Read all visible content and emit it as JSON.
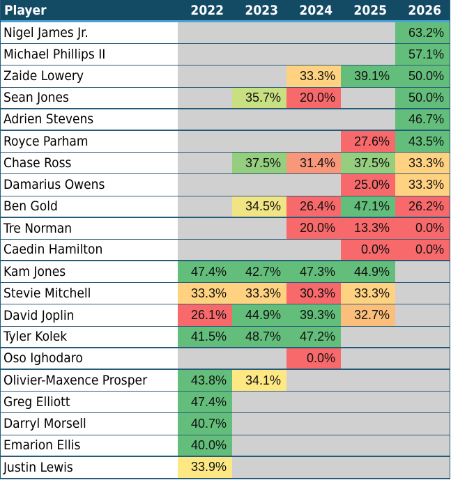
{
  "header": {
    "player": "Player",
    "years": [
      "2022",
      "2023",
      "2024",
      "2025",
      "2026"
    ]
  },
  "colors": {
    "empty": "#d0d0d0",
    "header_bg": "#134a64"
  },
  "rows": [
    {
      "name": "Nigel James Jr.",
      "cells": [
        null,
        null,
        null,
        null,
        {
          "v": "63.2%",
          "c": "#63be7b"
        }
      ]
    },
    {
      "name": "Michael Phillips II",
      "cells": [
        null,
        null,
        null,
        null,
        {
          "v": "57.1%",
          "c": "#63be7b"
        }
      ]
    },
    {
      "name": "Zaide Lowery",
      "cells": [
        null,
        null,
        {
          "v": "33.3%",
          "c": "#fed280"
        },
        {
          "v": "39.1%",
          "c": "#63be7b"
        },
        {
          "v": "50.0%",
          "c": "#63be7b"
        }
      ]
    },
    {
      "name": "Sean Jones",
      "cells": [
        null,
        {
          "v": "35.7%",
          "c": "#c8df82"
        },
        {
          "v": "20.0%",
          "c": "#f8696b"
        },
        null,
        {
          "v": "50.0%",
          "c": "#63be7b"
        }
      ]
    },
    {
      "name": "Adrien Stevens",
      "cells": [
        null,
        null,
        null,
        null,
        {
          "v": "46.7%",
          "c": "#63be7b"
        }
      ]
    },
    {
      "name": "Royce Parham",
      "cells": [
        null,
        null,
        null,
        {
          "v": "27.6%",
          "c": "#f8696b"
        },
        {
          "v": "43.5%",
          "c": "#63be7b"
        }
      ]
    },
    {
      "name": "Chase Ross",
      "cells": [
        null,
        {
          "v": "37.5%",
          "c": "#94ce7e"
        },
        {
          "v": "31.4%",
          "c": "#f8977a"
        },
        {
          "v": "37.5%",
          "c": "#94ce7e"
        },
        {
          "v": "33.3%",
          "c": "#fed280"
        }
      ]
    },
    {
      "name": "Damarius Owens",
      "cells": [
        null,
        null,
        null,
        {
          "v": "25.0%",
          "c": "#f8696b"
        },
        {
          "v": "33.3%",
          "c": "#fed280"
        }
      ]
    },
    {
      "name": "Ben Gold",
      "cells": [
        null,
        {
          "v": "34.5%",
          "c": "#f0e484"
        },
        {
          "v": "26.4%",
          "c": "#f8696b"
        },
        {
          "v": "47.1%",
          "c": "#63be7b"
        },
        {
          "v": "26.2%",
          "c": "#f8696b"
        }
      ]
    },
    {
      "name": "Tre Norman",
      "cells": [
        null,
        null,
        {
          "v": "20.0%",
          "c": "#f8696b"
        },
        {
          "v": "13.3%",
          "c": "#f8696b"
        },
        {
          "v": "0.0%",
          "c": "#f8696b"
        }
      ]
    },
    {
      "name": "Caedin Hamilton",
      "cells": [
        null,
        null,
        null,
        {
          "v": "0.0%",
          "c": "#f8696b"
        },
        {
          "v": "0.0%",
          "c": "#f8696b"
        }
      ]
    },
    {
      "name": "Kam Jones",
      "cells": [
        {
          "v": "47.4%",
          "c": "#63be7b"
        },
        {
          "v": "42.7%",
          "c": "#63be7b"
        },
        {
          "v": "47.3%",
          "c": "#63be7b"
        },
        {
          "v": "44.9%",
          "c": "#63be7b"
        },
        null
      ]
    },
    {
      "name": "Stevie Mitchell",
      "cells": [
        {
          "v": "33.3%",
          "c": "#fed280"
        },
        {
          "v": "33.3%",
          "c": "#fed280"
        },
        {
          "v": "30.3%",
          "c": "#f8696b"
        },
        {
          "v": "33.3%",
          "c": "#fed280"
        },
        null
      ]
    },
    {
      "name": "David Joplin",
      "cells": [
        {
          "v": "26.1%",
          "c": "#f8696b"
        },
        {
          "v": "44.9%",
          "c": "#63be7b"
        },
        {
          "v": "39.3%",
          "c": "#63be7b"
        },
        {
          "v": "32.7%",
          "c": "#fcbf7b"
        },
        null
      ]
    },
    {
      "name": "Tyler Kolek",
      "cells": [
        {
          "v": "41.5%",
          "c": "#63be7b"
        },
        {
          "v": "48.7%",
          "c": "#63be7b"
        },
        {
          "v": "47.2%",
          "c": "#63be7b"
        },
        null,
        null
      ]
    },
    {
      "name": "Oso Ighodaro",
      "cells": [
        null,
        null,
        {
          "v": "0.0%",
          "c": "#f8696b"
        },
        null,
        null
      ]
    },
    {
      "name": "Olivier-Maxence Prosper",
      "cells": [
        {
          "v": "43.8%",
          "c": "#63be7b"
        },
        {
          "v": "34.1%",
          "c": "#fde883"
        },
        null,
        null,
        null
      ]
    },
    {
      "name": "Greg Elliott",
      "cells": [
        {
          "v": "47.4%",
          "c": "#63be7b"
        },
        null,
        null,
        null,
        null
      ]
    },
    {
      "name": "Darryl Morsell",
      "cells": [
        {
          "v": "40.7%",
          "c": "#63be7b"
        },
        null,
        null,
        null,
        null
      ]
    },
    {
      "name": "Emarion Ellis",
      "cells": [
        {
          "v": "40.0%",
          "c": "#63be7b"
        },
        null,
        null,
        null,
        null
      ]
    },
    {
      "name": "Justin Lewis",
      "cells": [
        {
          "v": "33.9%",
          "c": "#fde883"
        },
        null,
        null,
        null,
        null
      ]
    }
  ]
}
